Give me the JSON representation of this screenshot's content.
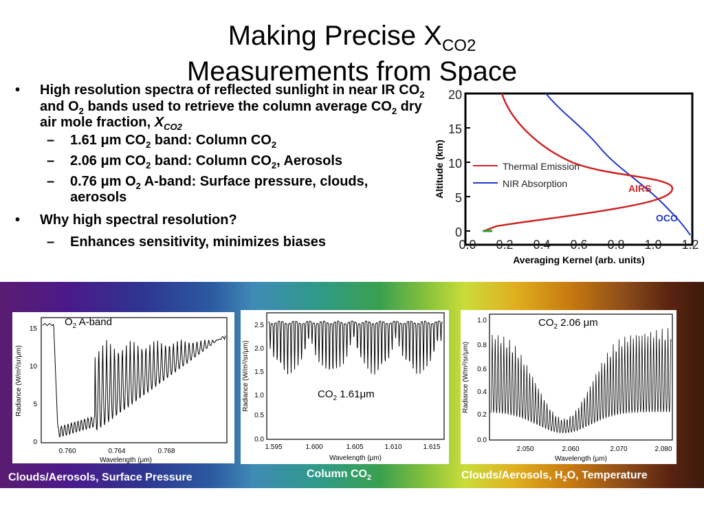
{
  "title": {
    "line1_main": "Making Precise X",
    "line1_sub": "CO2",
    "line2": "Measurements from Space"
  },
  "bullets": {
    "b1": {
      "text_a": "High resolution spectra of reflected sunlight in near IR CO",
      "sub_a": "2",
      "text_b": " and O",
      "sub_b": "2",
      "text_c": " bands used to retrieve the column average CO",
      "sub_c": "2",
      "text_d": " dry air mole fraction, ",
      "x": "X",
      "x_sub": "CO2"
    },
    "s1": {
      "text_a": "1.61 ",
      "mu": "μ",
      "text_b": "m CO",
      "sub_a": "2",
      "text_c": " band: Column CO",
      "sub_b": "2"
    },
    "s2": {
      "text_a": "2.06 ",
      "mu": "μ",
      "text_b": "m CO",
      "sub_a": "2",
      "text_c": " band: Column CO",
      "sub_b": "2",
      "text_d": ", Aerosols"
    },
    "s3": {
      "text_a": "0.76 ",
      "mu": "μ",
      "text_b": "m O",
      "sub_a": "2",
      "text_c": " A-band: Surface pressure, clouds, aerosols"
    },
    "b2": {
      "text": "Why high spectral resolution?"
    },
    "s4": {
      "text": "Enhances sensitivity, minimizes biases"
    },
    "bullet_mark": "•",
    "dash_mark": "–"
  },
  "kernel_chart": {
    "y_ticks": [
      "0",
      "5",
      "10",
      "15",
      "20"
    ],
    "x_ticks": [
      "0.0",
      "0.2",
      "0.4",
      "0.6",
      "0.8",
      "1.0",
      "1.2"
    ],
    "y_label": "Altitude (km)",
    "x_label": "Averaging Kernel (arb. units)",
    "legend_thermal": "Thermal Emission",
    "legend_nir": "NIR Absorption",
    "label_airs": "AIRS",
    "label_oco": "OCO",
    "color_thermal": "#cc2222",
    "color_nir": "#1f36c8"
  },
  "spectra": {
    "oxygen": {
      "label_main": "O",
      "label_sub": "2",
      "label_rest": " A-band",
      "y_label": "Radiance (W/m²/sr/μm)",
      "x_label": "Wavelength (μm)",
      "y_ticks": [
        "0",
        "5",
        "10",
        "15"
      ],
      "x_ticks": [
        "0.760",
        "0.764",
        "0.768"
      ],
      "caption": "Clouds/Aerosols, Surface Pressure"
    },
    "co2_161": {
      "label_main": "CO",
      "label_sub": "2",
      "label_rest": " 1.61",
      "label_mu": "μ",
      "label_unit": "m",
      "y_label": "Radiance (W/m²/sr/μm)",
      "x_label": "Wavelength (μm)",
      "y_ticks": [
        "0.0",
        "0.5",
        "1.0",
        "1.5",
        "2.0",
        "2.5"
      ],
      "x_ticks": [
        "1.595",
        "1.600",
        "1.605",
        "1.610",
        "1.615"
      ],
      "caption_main": "Column CO",
      "caption_sub": "2"
    },
    "co2_206": {
      "label_main": "CO",
      "label_sub": "2",
      "label_rest": " 2.06 ",
      "label_mu": "μ",
      "label_unit": "m",
      "y_label": "Radiance (W/m²/sr/μm)",
      "x_label": "Wavelength (μm)",
      "y_ticks": [
        "0.0",
        "0.2",
        "0.4",
        "0.6",
        "0.8",
        "1.0"
      ],
      "x_ticks": [
        "2.050",
        "2.060",
        "2.070",
        "2.080"
      ],
      "caption_a": "Clouds/Aerosols, H",
      "caption_sub": "2",
      "caption_b": "O, Temperature"
    }
  }
}
